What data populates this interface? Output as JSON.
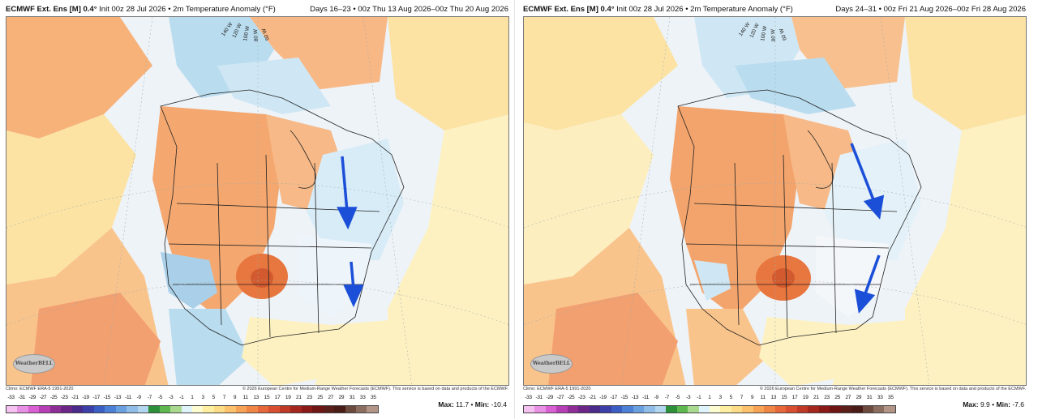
{
  "panels": [
    {
      "id": "left",
      "title_model": "ECMWF Ext.  Ens [M] 0.4°",
      "title_rest": " Init 00z 28 Jul 2026 • 2m Temperature Anomaly (°F)",
      "days": "Days 16–23 • 00z Thu 13 Aug 2026–00z Thu 20 Aug 2026",
      "climo": "Climo: ECMWF ERA-5 1991-2020",
      "copyright": "© 2026 European Centre for Medium-Range Weather Forecasts (ECMWF). This service is based on data and products of the ECMWF.",
      "max_label": "Max:",
      "max_value": "11.7",
      "min_label": "Min:",
      "min_value": "-10.4",
      "logo": "WeatherBELL",
      "longitude_labels": [
        "140 W",
        "120 W",
        "100 W",
        "80 W",
        "60 W"
      ],
      "arrows": [
        "arrow-great-lakes",
        "arrow-southeast"
      ]
    },
    {
      "id": "right",
      "title_model": "ECMWF Ext.  Ens [M] 0.4°",
      "title_rest": " Init 00z 28 Jul 2026 • 2m Temperature Anomaly (°F)",
      "days": "Days 24–31 • 00z Fri 21 Aug 2026–00z Fri 28 Aug 2026",
      "climo": "Climo: ECMWF ERA-5 1991-2020",
      "copyright": "© 2026 European Centre for Medium-Range Weather Forecasts (ECMWF). This service is based on data and products of the ECMWF.",
      "max_label": "Max:",
      "max_value": "9.9",
      "min_label": "Min:",
      "min_value": "-7.6",
      "logo": "WeatherBELL",
      "longitude_labels": [
        "140 W",
        "120 W",
        "100 W",
        "80 W",
        "60 W"
      ],
      "arrows": [
        "arrow-northeast",
        "arrow-southeast"
      ]
    }
  ],
  "colorbar": {
    "ticks": [
      "-33",
      "-31",
      "-29",
      "-27",
      "-25",
      "-23",
      "-21",
      "-19",
      "-17",
      "-15",
      "-13",
      "-11",
      "-9",
      "-7",
      "-5",
      "-3",
      "-1",
      "1",
      "3",
      "5",
      "7",
      "9",
      "11",
      "13",
      "15",
      "17",
      "19",
      "21",
      "23",
      "25",
      "27",
      "29",
      "31",
      "33",
      "35"
    ],
    "colors": [
      "#f5c1f0",
      "#e890e3",
      "#d960d3",
      "#b63fb6",
      "#8f2d97",
      "#6c2688",
      "#4a2a8a",
      "#3d3fa8",
      "#3a5ec4",
      "#4c80d6",
      "#6aa0e0",
      "#8fbde8",
      "#b2d6ef",
      "#2c8f3a",
      "#5fb84f",
      "#a9d98f",
      "#dff3fb",
      "#fdfbd0",
      "#fdeea0",
      "#fddc88",
      "#fbc16c",
      "#f6a356",
      "#ef8646",
      "#e6673a",
      "#d84e30",
      "#c03826",
      "#a5261d",
      "#8a1a17",
      "#6f1513",
      "#5a1f1a",
      "#4a1c18",
      "#6d4a3e",
      "#8c6e60",
      "#b29586"
    ]
  }
}
